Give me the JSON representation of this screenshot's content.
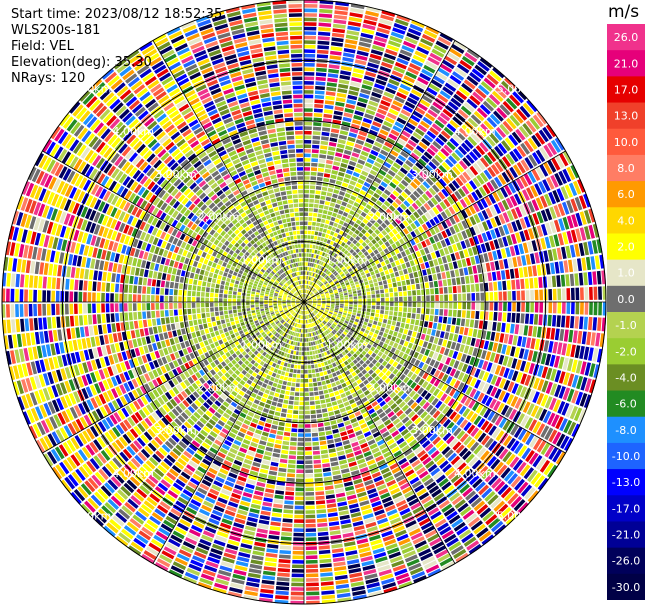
{
  "header": {
    "start_time": "Start time: 2023/08/12 18:52:35",
    "instrument": "WLS200s-181",
    "field": "Field: VEL",
    "elevation": "Elevation(deg): 35.30",
    "nrays": "NRays: 120"
  },
  "colorbar": {
    "unit": "m/s",
    "levels": [
      {
        "label": "26.0",
        "color": "#f0328c"
      },
      {
        "label": "21.0",
        "color": "#e6007a"
      },
      {
        "label": "17.0",
        "color": "#e60000"
      },
      {
        "label": "13.0",
        "color": "#f0402a"
      },
      {
        "label": "10.0",
        "color": "#ff5a3c"
      },
      {
        "label": "8.0",
        "color": "#ff7d64"
      },
      {
        "label": "6.0",
        "color": "#ff9a00"
      },
      {
        "label": "4.0",
        "color": "#ffd700"
      },
      {
        "label": "2.0",
        "color": "#ffff00"
      },
      {
        "label": "1.0",
        "color": "#e6e6c8"
      },
      {
        "label": "0.0",
        "color": "#6e6e6e"
      },
      {
        "label": "-1.0",
        "color": "#b4d250"
      },
      {
        "label": "-2.0",
        "color": "#9acd32"
      },
      {
        "label": "-4.0",
        "color": "#6b8e23"
      },
      {
        "label": "-6.0",
        "color": "#228b22"
      },
      {
        "label": "-8.0",
        "color": "#1e90ff"
      },
      {
        "label": "-10.0",
        "color": "#1e64ff"
      },
      {
        "label": "-13.0",
        "color": "#0000ff"
      },
      {
        "label": "-17.0",
        "color": "#0000c8"
      },
      {
        "label": "-21.0",
        "color": "#000096"
      },
      {
        "label": "-26.0",
        "color": "#00005a"
      },
      {
        "label": "-30.0",
        "color": "#000046"
      }
    ]
  },
  "chart_data": {
    "type": "heatmap",
    "projection": "polar (PPI)",
    "field": "VEL",
    "nrays": 120,
    "range_unit": "km",
    "range_rings_km": [
      1,
      2,
      3,
      4,
      5
    ],
    "ring_labels": [
      "1.00km",
      "2.00km",
      "3.00km",
      "4.00km",
      "5.00km"
    ],
    "max_range_km": 5.0,
    "value_range": [
      -30,
      26
    ],
    "description_of_pattern": "near-zero and slightly negative velocities (gray/olive) in the inner 2 km with yellow patches; noisy multicolor values beyond ~3 km"
  }
}
